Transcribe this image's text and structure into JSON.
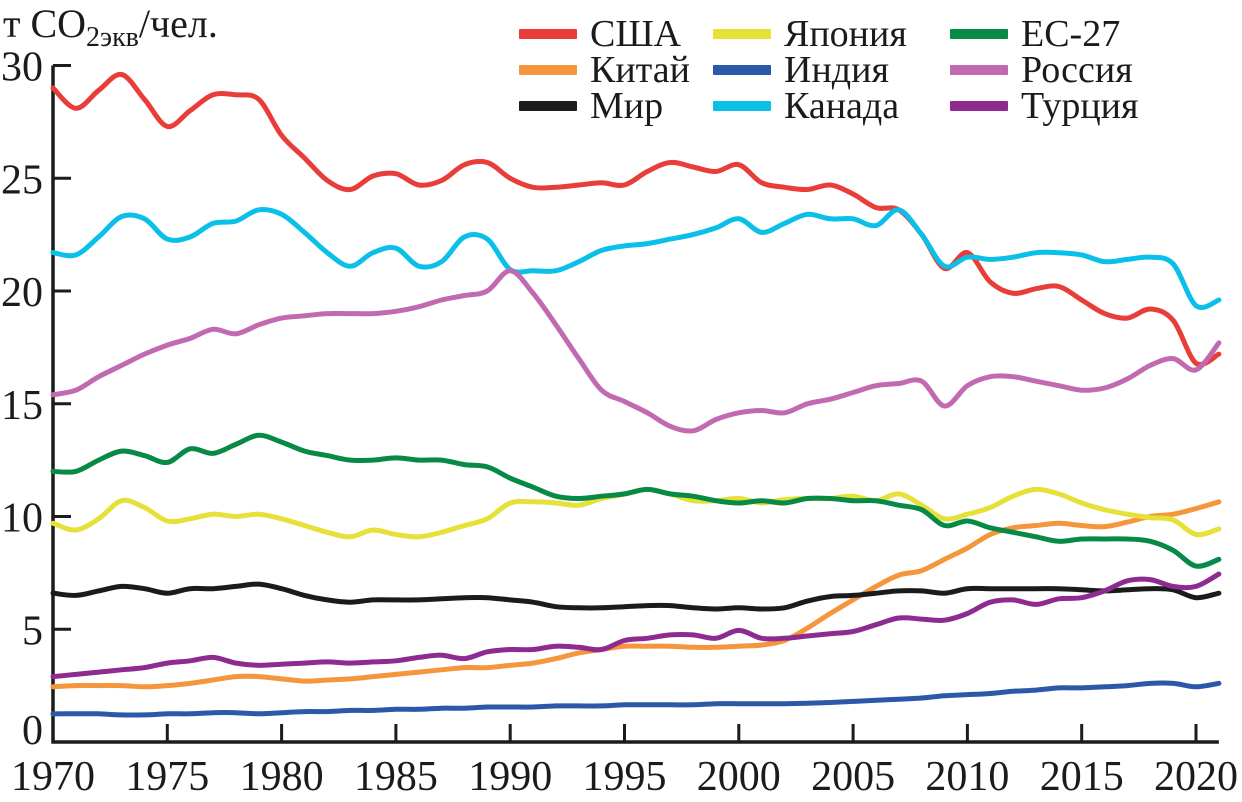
{
  "chart_data": {
    "type": "line",
    "title": "",
    "ylabel": "т СО2экв/чел.",
    "ylabel_parts": {
      "prefix": "т СО",
      "sub": "2экв",
      "suffix": "/чел."
    },
    "xlabel": "",
    "xlim": [
      1970,
      2021
    ],
    "ylim": [
      0,
      30
    ],
    "x_ticks": [
      1970,
      1975,
      1980,
      1985,
      1990,
      1995,
      2000,
      2005,
      2010,
      2015,
      2020
    ],
    "y_ticks": [
      0,
      5,
      10,
      15,
      20,
      25,
      30
    ],
    "grid": false,
    "legend_position": "top",
    "axis_color": "#1b1b1b",
    "x": [
      1970,
      1971,
      1972,
      1973,
      1974,
      1975,
      1976,
      1977,
      1978,
      1979,
      1980,
      1981,
      1982,
      1983,
      1984,
      1985,
      1986,
      1987,
      1988,
      1989,
      1990,
      1991,
      1992,
      1993,
      1994,
      1995,
      1996,
      1997,
      1998,
      1999,
      2000,
      2001,
      2002,
      2003,
      2004,
      2005,
      2006,
      2007,
      2008,
      2009,
      2010,
      2011,
      2012,
      2013,
      2014,
      2015,
      2016,
      2017,
      2018,
      2019,
      2020,
      2021
    ],
    "series": [
      {
        "name": "США",
        "color": "#e93d3a",
        "values": [
          29.0,
          28.1,
          28.9,
          29.6,
          28.5,
          27.3,
          28.0,
          28.7,
          28.7,
          28.5,
          26.9,
          25.9,
          24.9,
          24.5,
          25.1,
          25.2,
          24.7,
          24.9,
          25.6,
          25.7,
          25.0,
          24.6,
          24.6,
          24.7,
          24.8,
          24.7,
          25.3,
          25.7,
          25.5,
          25.3,
          25.6,
          24.8,
          24.6,
          24.5,
          24.7,
          24.3,
          23.7,
          23.6,
          22.5,
          21.0,
          21.7,
          20.4,
          19.9,
          20.1,
          20.2,
          19.6,
          19.0,
          18.8,
          19.2,
          18.7,
          16.8,
          17.2
        ]
      },
      {
        "name": "Китай",
        "color": "#f5953c",
        "values": [
          2.45,
          2.5,
          2.5,
          2.5,
          2.45,
          2.5,
          2.6,
          2.75,
          2.9,
          2.9,
          2.8,
          2.7,
          2.75,
          2.8,
          2.9,
          3.0,
          3.1,
          3.2,
          3.3,
          3.3,
          3.4,
          3.5,
          3.7,
          3.95,
          4.1,
          4.25,
          4.25,
          4.25,
          4.2,
          4.2,
          4.25,
          4.3,
          4.5,
          5.05,
          5.7,
          6.3,
          6.9,
          7.4,
          7.6,
          8.1,
          8.6,
          9.2,
          9.5,
          9.6,
          9.7,
          9.6,
          9.55,
          9.75,
          10.0,
          10.1,
          10.35,
          10.65
        ]
      },
      {
        "name": "Мир",
        "color": "#1b1b1b",
        "values": [
          6.6,
          6.5,
          6.7,
          6.9,
          6.8,
          6.6,
          6.8,
          6.8,
          6.9,
          7.0,
          6.8,
          6.5,
          6.3,
          6.2,
          6.3,
          6.3,
          6.3,
          6.35,
          6.4,
          6.4,
          6.3,
          6.2,
          6.0,
          5.95,
          5.95,
          6.0,
          6.05,
          6.05,
          5.95,
          5.9,
          5.95,
          5.9,
          5.95,
          6.25,
          6.45,
          6.5,
          6.6,
          6.7,
          6.7,
          6.6,
          6.8,
          6.8,
          6.8,
          6.8,
          6.8,
          6.75,
          6.7,
          6.75,
          6.8,
          6.75,
          6.4,
          6.6
        ]
      },
      {
        "name": "Япония",
        "color": "#e5e138",
        "values": [
          9.7,
          9.4,
          9.9,
          10.7,
          10.4,
          9.8,
          9.9,
          10.1,
          10.0,
          10.1,
          9.9,
          9.6,
          9.3,
          9.1,
          9.4,
          9.2,
          9.1,
          9.3,
          9.6,
          9.9,
          10.6,
          10.65,
          10.6,
          10.5,
          10.8,
          11.0,
          11.2,
          11.0,
          10.7,
          10.7,
          10.8,
          10.6,
          10.75,
          10.8,
          10.8,
          10.9,
          10.7,
          11.0,
          10.5,
          9.9,
          10.1,
          10.4,
          10.9,
          11.2,
          11.0,
          10.6,
          10.3,
          10.1,
          9.95,
          9.85,
          9.2,
          9.45
        ]
      },
      {
        "name": "Индия",
        "color": "#2b58a8",
        "values": [
          1.25,
          1.25,
          1.25,
          1.2,
          1.2,
          1.25,
          1.25,
          1.3,
          1.3,
          1.25,
          1.3,
          1.35,
          1.35,
          1.4,
          1.4,
          1.45,
          1.45,
          1.5,
          1.5,
          1.55,
          1.55,
          1.55,
          1.6,
          1.6,
          1.6,
          1.65,
          1.65,
          1.65,
          1.65,
          1.7,
          1.7,
          1.7,
          1.7,
          1.72,
          1.75,
          1.8,
          1.85,
          1.9,
          1.95,
          2.05,
          2.1,
          2.15,
          2.25,
          2.3,
          2.4,
          2.4,
          2.45,
          2.5,
          2.6,
          2.6,
          2.45,
          2.6
        ]
      },
      {
        "name": "Канада",
        "color": "#0abfe8",
        "values": [
          21.7,
          21.6,
          22.4,
          23.3,
          23.2,
          22.3,
          22.4,
          23.0,
          23.1,
          23.6,
          23.4,
          22.6,
          21.7,
          21.1,
          21.7,
          21.9,
          21.1,
          21.3,
          22.4,
          22.3,
          20.95,
          20.9,
          20.9,
          21.3,
          21.8,
          22.0,
          22.1,
          22.3,
          22.5,
          22.8,
          23.2,
          22.6,
          23.0,
          23.4,
          23.2,
          23.2,
          22.9,
          23.6,
          22.5,
          21.1,
          21.5,
          21.4,
          21.5,
          21.7,
          21.7,
          21.6,
          21.3,
          21.4,
          21.5,
          21.2,
          19.35,
          19.6
        ]
      },
      {
        "name": "ЕС-27",
        "color": "#078a46",
        "values": [
          12.0,
          12.0,
          12.5,
          12.9,
          12.7,
          12.4,
          13.0,
          12.8,
          13.2,
          13.6,
          13.3,
          12.9,
          12.7,
          12.5,
          12.5,
          12.6,
          12.5,
          12.5,
          12.3,
          12.2,
          11.7,
          11.3,
          10.9,
          10.8,
          10.9,
          11.0,
          11.2,
          11.0,
          10.9,
          10.7,
          10.6,
          10.7,
          10.6,
          10.8,
          10.8,
          10.7,
          10.7,
          10.5,
          10.3,
          9.6,
          9.8,
          9.5,
          9.3,
          9.1,
          8.9,
          9.0,
          9.0,
          9.0,
          8.9,
          8.5,
          7.8,
          8.1
        ]
      },
      {
        "name": "Россия",
        "color": "#c16ab2",
        "values": [
          15.4,
          15.6,
          16.2,
          16.7,
          17.2,
          17.6,
          17.9,
          18.3,
          18.1,
          18.5,
          18.8,
          18.9,
          19.0,
          19.0,
          19.0,
          19.1,
          19.3,
          19.6,
          19.8,
          20.0,
          20.9,
          19.9,
          18.5,
          17.0,
          15.6,
          15.1,
          14.6,
          14.0,
          13.8,
          14.3,
          14.6,
          14.7,
          14.6,
          15.0,
          15.2,
          15.5,
          15.8,
          15.9,
          16.0,
          14.9,
          15.8,
          16.2,
          16.2,
          16.0,
          15.8,
          15.6,
          15.7,
          16.1,
          16.7,
          17.0,
          16.5,
          17.7
        ]
      },
      {
        "name": "Турция",
        "color": "#8e2b90",
        "values": [
          2.9,
          3.0,
          3.1,
          3.2,
          3.3,
          3.5,
          3.6,
          3.75,
          3.5,
          3.4,
          3.45,
          3.5,
          3.55,
          3.5,
          3.55,
          3.6,
          3.75,
          3.85,
          3.7,
          4.0,
          4.1,
          4.1,
          4.25,
          4.2,
          4.1,
          4.5,
          4.6,
          4.75,
          4.75,
          4.6,
          4.95,
          4.6,
          4.6,
          4.7,
          4.8,
          4.9,
          5.2,
          5.5,
          5.45,
          5.4,
          5.7,
          6.2,
          6.3,
          6.1,
          6.35,
          6.4,
          6.7,
          7.15,
          7.2,
          6.9,
          6.9,
          7.45
        ]
      }
    ]
  }
}
